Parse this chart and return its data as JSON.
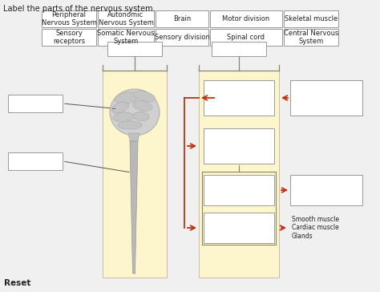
{
  "title": "Label the parts of the nervous system.",
  "background_color": "#f0f0f0",
  "label_boxes_row1": [
    "Peripheral\nNervous System",
    "Autonomic\nNervous System",
    "Brain",
    "Motor division",
    "Skeletal muscle"
  ],
  "label_boxes_row2": [
    "Sensory\nreceptors",
    "Somatic Nervous\nSystem",
    "Sensory division",
    "Spinal cord",
    "Central Nervous\nSystem"
  ],
  "box_color": "#ffffff",
  "box_edge_color": "#999999",
  "yellow_col_color": "#fdf5cc",
  "arrow_color": "#c03010",
  "text_color": "#222222",
  "reset_text": "Reset",
  "smooth_muscle_text": "Smooth muscle\nCardiac muscle\nGlands",
  "title_fontsize": 7.0,
  "label_fontsize": 6.0,
  "reset_fontsize": 7.5
}
